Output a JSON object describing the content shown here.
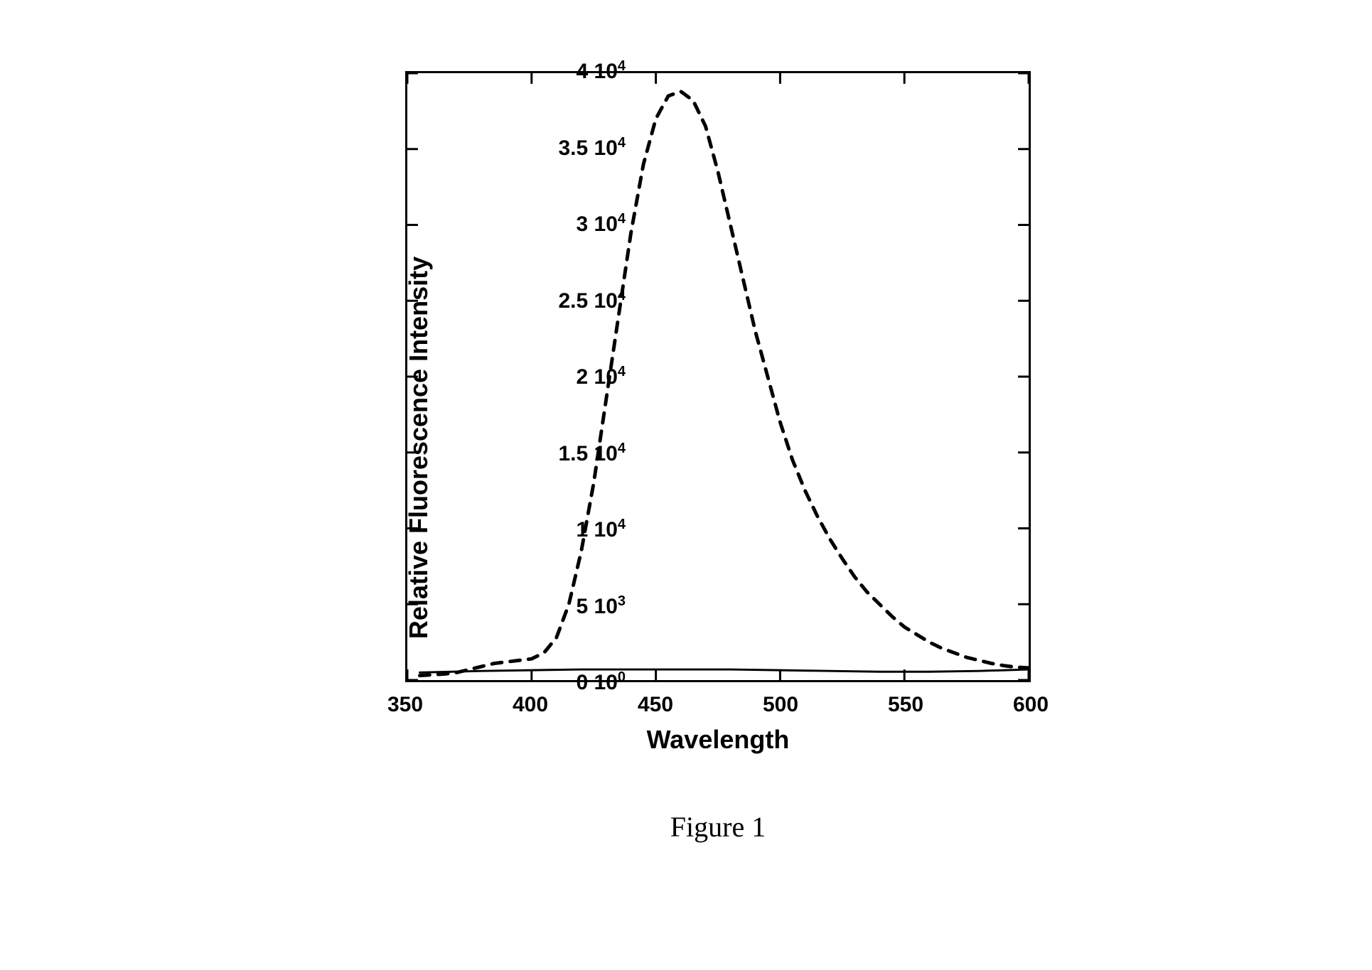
{
  "chart": {
    "type": "line",
    "title": null,
    "caption": "Figure 1",
    "xlabel": "Wavelength",
    "ylabel": "Relative Fluorescence Intensity",
    "xlim": [
      350,
      600
    ],
    "ylim": [
      0,
      40000
    ],
    "x_ticks": [
      350,
      400,
      450,
      500,
      550,
      600
    ],
    "x_tick_labels": [
      "350",
      "400",
      "450",
      "500",
      "550",
      "600"
    ],
    "y_ticks": [
      0,
      5000,
      10000,
      15000,
      20000,
      25000,
      30000,
      35000,
      40000
    ],
    "y_tick_labels_base": [
      "0 10",
      "5 10",
      "1 10",
      "1.5 10",
      "2 10",
      "2.5 10",
      "3 10",
      "3.5 10",
      "4 10"
    ],
    "y_tick_labels_exp": [
      "0",
      "3",
      "4",
      "4",
      "4",
      "4",
      "4",
      "4",
      "4"
    ],
    "major_tick_length": 15,
    "minor_tick_length": 0,
    "tick_direction": "in",
    "background_color": "#ffffff",
    "axis_color": "#000000",
    "axis_width": 3,
    "label_fontsize": 36,
    "tick_fontsize": 30,
    "caption_fontsize": 40,
    "caption_font_family": "serif",
    "font_weight": "bold",
    "series": [
      {
        "name": "dashed-peak",
        "color": "#000000",
        "line_width": 5,
        "dash_pattern": "14,12",
        "x": [
          355,
          360,
          365,
          370,
          375,
          380,
          385,
          390,
          395,
          400,
          405,
          410,
          415,
          420,
          425,
          430,
          435,
          440,
          445,
          450,
          455,
          460,
          465,
          470,
          475,
          480,
          485,
          490,
          495,
          500,
          505,
          510,
          515,
          520,
          525,
          530,
          535,
          540,
          545,
          550,
          555,
          560,
          565,
          570,
          575,
          580,
          585,
          590,
          595,
          600
        ],
        "y": [
          300,
          350,
          400,
          500,
          700,
          900,
          1100,
          1200,
          1300,
          1400,
          1800,
          2800,
          5000,
          8500,
          13000,
          18500,
          24000,
          29500,
          34000,
          37000,
          38500,
          38800,
          38200,
          36500,
          33500,
          30000,
          26500,
          23000,
          20000,
          17000,
          14500,
          12500,
          10800,
          9300,
          8000,
          6800,
          5800,
          5000,
          4200,
          3500,
          3000,
          2500,
          2100,
          1800,
          1500,
          1300,
          1100,
          950,
          850,
          800
        ]
      },
      {
        "name": "solid-baseline",
        "color": "#000000",
        "line_width": 3,
        "dash_pattern": null,
        "x": [
          355,
          380,
          400,
          420,
          440,
          460,
          480,
          500,
          520,
          540,
          560,
          580,
          600
        ],
        "y": [
          500,
          600,
          650,
          700,
          700,
          700,
          700,
          650,
          600,
          550,
          550,
          600,
          700
        ]
      }
    ]
  }
}
